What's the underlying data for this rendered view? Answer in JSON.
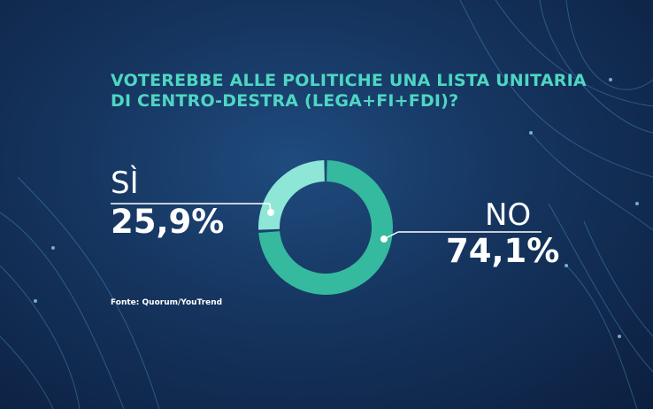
{
  "title_lines": [
    "VOTEREBBE ALLE POLITICHE UNA LISTA UNITARIA",
    "DI CENTRO-DESTRA (LEGA+FI+FDI)?"
  ],
  "source": "Fonte: Quorum/YouTrend",
  "colors": {
    "title": "#4fd6c2",
    "no": "#35b99f",
    "si": "#8ee6d6",
    "text": "#ffffff"
  },
  "chart_data": {
    "type": "pie",
    "donut": true,
    "title": "VOTEREBBE ALLE POLITICHE UNA LISTA UNITARIA DI CENTRO-DESTRA (LEGA+FI+FDI)?",
    "slices": [
      {
        "label": "NO",
        "value": 74.1,
        "display": "74,1%",
        "color": "#35b99f"
      },
      {
        "label": "SÌ",
        "value": 25.9,
        "display": "25,9%",
        "color": "#8ee6d6"
      }
    ]
  }
}
